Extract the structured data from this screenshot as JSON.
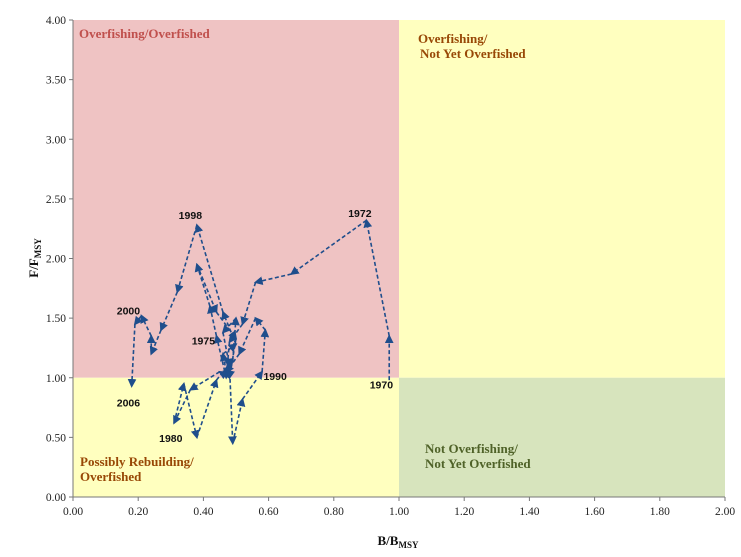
{
  "chart_data": {
    "type": "line",
    "title": "",
    "xlabel": "B/B",
    "xlabel_sub": "MSY",
    "ylabel": "F/F",
    "ylabel_sub": "MSY",
    "xlim": [
      0,
      2
    ],
    "ylim": [
      0,
      4
    ],
    "x_ticks": [
      "0.00",
      "0.20",
      "0.40",
      "0.60",
      "0.80",
      "1.00",
      "1.20",
      "1.40",
      "1.60",
      "1.80",
      "2.00"
    ],
    "y_ticks": [
      "0.00",
      "0.50",
      "1.00",
      "1.50",
      "2.00",
      "2.50",
      "3.00",
      "3.50",
      "4.00"
    ],
    "grid": false,
    "legend": "none",
    "quadrants": [
      {
        "label_lines": [
          "Overfishing/Overfished"
        ],
        "x": [
          0,
          1
        ],
        "y": [
          1,
          4
        ],
        "fill": "#efc3c3",
        "text_color": "#c0504d"
      },
      {
        "label_lines": [
          "Overfishing/",
          "Not Yet Overfished"
        ],
        "x": [
          1,
          2
        ],
        "y": [
          1,
          4
        ],
        "fill": "#ffffbf",
        "text_color": "#984806"
      },
      {
        "label_lines": [
          "Possibly Rebuilding/",
          "Overfished"
        ],
        "x": [
          0,
          1
        ],
        "y": [
          0,
          1
        ],
        "fill": "#ffffbf",
        "text_color": "#984806"
      },
      {
        "label_lines": [
          "Not Overfishing/",
          "Not Yet Overfished"
        ],
        "x": [
          1,
          2
        ],
        "y": [
          0,
          1
        ],
        "fill": "#d7e4bd",
        "text_color": "#4f6228"
      }
    ],
    "series": [
      {
        "color": "#1f4e8c",
        "points": [
          [
            0.97,
            0.98
          ],
          [
            0.97,
            1.35
          ],
          [
            0.9,
            2.32
          ],
          [
            0.67,
            1.87
          ],
          [
            0.56,
            1.8
          ],
          [
            0.52,
            1.45
          ],
          [
            0.48,
            1.3
          ],
          [
            0.47,
            1.0
          ],
          [
            0.44,
            1.35
          ],
          [
            0.42,
            1.6
          ],
          [
            0.38,
            1.95
          ],
          [
            0.44,
            1.55
          ],
          [
            0.5,
            1.33
          ],
          [
            0.48,
            1.0
          ],
          [
            0.45,
            1.05
          ],
          [
            0.36,
            0.9
          ],
          [
            0.31,
            0.62
          ],
          [
            0.34,
            0.95
          ],
          [
            0.38,
            0.5
          ],
          [
            0.44,
            0.98
          ],
          [
            0.49,
            1.15
          ],
          [
            0.5,
            1.5
          ],
          [
            0.46,
            1.38
          ],
          [
            0.48,
            1.1
          ],
          [
            0.49,
            0.45
          ],
          [
            0.52,
            0.82
          ],
          [
            0.58,
            1.05
          ],
          [
            0.59,
            1.4
          ],
          [
            0.56,
            1.5
          ],
          [
            0.51,
            1.2
          ],
          [
            0.47,
            1.05
          ],
          [
            0.46,
            1.2
          ],
          [
            0.5,
            1.28
          ],
          [
            0.46,
            1.55
          ],
          [
            0.38,
            2.28
          ],
          [
            0.32,
            1.72
          ],
          [
            0.27,
            1.4
          ],
          [
            0.24,
            1.2
          ],
          [
            0.24,
            1.35
          ],
          [
            0.21,
            1.52
          ],
          [
            0.19,
            1.45
          ],
          [
            0.18,
            0.93
          ]
        ]
      }
    ],
    "annotations": [
      {
        "text": "1970",
        "x": 0.946,
        "y": 0.91
      },
      {
        "text": "1972",
        "x": 0.88,
        "y": 2.35
      },
      {
        "text": "1975",
        "x": 0.4,
        "y": 1.28
      },
      {
        "text": "1980",
        "x": 0.3,
        "y": 0.46
      },
      {
        "text": "1990",
        "x": 0.62,
        "y": 0.98
      },
      {
        "text": "1998",
        "x": 0.36,
        "y": 2.33
      },
      {
        "text": "2000",
        "x": 0.17,
        "y": 1.53
      },
      {
        "text": "2006",
        "x": 0.17,
        "y": 0.76
      }
    ]
  }
}
